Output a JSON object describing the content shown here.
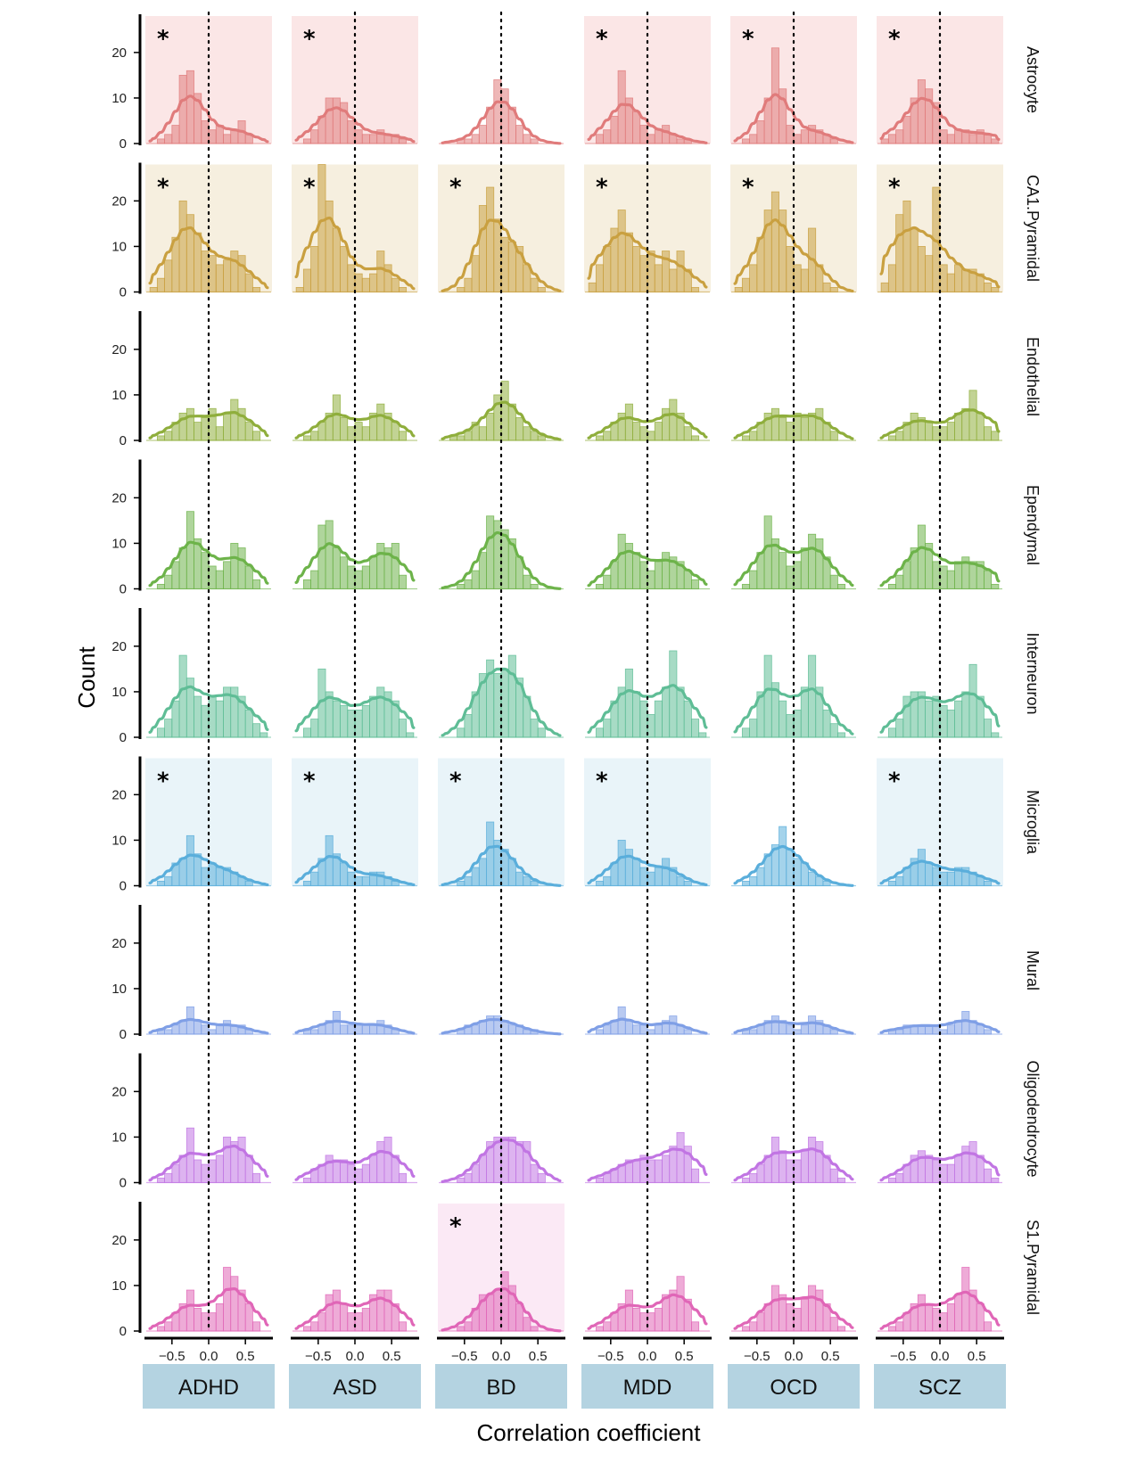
{
  "chart_data": {
    "type": "histogram",
    "xlabel": "Correlation coefficient",
    "ylabel": "Count",
    "xlim": [
      -0.85,
      0.85
    ],
    "ylim": [
      0,
      28
    ],
    "x_ticks": [
      -0.5,
      0.0,
      0.5
    ],
    "x_tick_labels": [
      "−0.5",
      "0.0",
      "0.5"
    ],
    "y_ticks": [
      0,
      10,
      20
    ],
    "y_tick_labels": [
      "0",
      "10",
      "20"
    ],
    "reference_line_x": 0,
    "bin_width": 0.1,
    "bin_centers": [
      -0.75,
      -0.65,
      -0.55,
      -0.45,
      -0.35,
      -0.25,
      -0.15,
      -0.05,
      0.05,
      0.15,
      0.25,
      0.35,
      0.45,
      0.55,
      0.65,
      0.75
    ],
    "columns": [
      "ADHD",
      "ASD",
      "BD",
      "MDD",
      "OCD",
      "SCZ"
    ],
    "significance_symbol": "*",
    "rows": [
      {
        "name": "Astrocyte",
        "color": "#e07b7b",
        "shade": "#fbe6e6",
        "significant": [
          true,
          true,
          false,
          true,
          true,
          true
        ],
        "counts": [
          [
            0,
            1,
            2,
            4,
            15,
            16,
            11,
            5,
            3,
            4,
            2,
            3,
            5,
            2,
            0,
            0
          ],
          [
            0,
            1,
            3,
            6,
            10,
            10,
            9,
            5,
            3,
            2,
            2,
            3,
            2,
            2,
            1,
            0
          ],
          [
            0,
            0,
            1,
            1,
            2,
            4,
            8,
            14,
            12,
            8,
            4,
            2,
            1,
            0,
            0,
            0
          ],
          [
            0,
            2,
            3,
            6,
            16,
            10,
            7,
            4,
            2,
            3,
            4,
            2,
            1,
            1,
            0,
            0
          ],
          [
            0,
            1,
            2,
            5,
            10,
            21,
            12,
            4,
            2,
            3,
            4,
            3,
            2,
            1,
            0,
            0
          ],
          [
            1,
            2,
            3,
            6,
            10,
            14,
            12,
            9,
            3,
            2,
            3,
            3,
            2,
            3,
            2,
            1
          ]
        ]
      },
      {
        "name": "CA1.Pyramidal",
        "color": "#c9a040",
        "shade": "#f6efdf",
        "significant": [
          true,
          true,
          true,
          true,
          true,
          true
        ],
        "counts": [
          [
            1,
            3,
            7,
            12,
            20,
            17,
            13,
            9,
            8,
            6,
            7,
            9,
            8,
            4,
            1,
            0
          ],
          [
            1,
            5,
            10,
            28,
            20,
            14,
            10,
            6,
            4,
            3,
            4,
            9,
            6,
            3,
            1,
            0
          ],
          [
            0,
            0,
            1,
            3,
            8,
            19,
            23,
            16,
            12,
            11,
            10,
            6,
            3,
            1,
            0,
            0
          ],
          [
            2,
            6,
            10,
            14,
            18,
            13,
            10,
            8,
            9,
            6,
            9,
            5,
            9,
            5,
            1,
            0
          ],
          [
            1,
            3,
            6,
            12,
            18,
            22,
            18,
            10,
            6,
            5,
            14,
            6,
            2,
            1,
            0,
            0
          ],
          [
            2,
            6,
            17,
            20,
            14,
            10,
            8,
            23,
            6,
            4,
            6,
            5,
            5,
            4,
            2,
            1
          ]
        ]
      },
      {
        "name": "Endothelial",
        "color": "#8fae3c",
        "shade": "#f4f7e6",
        "significant": [
          false,
          false,
          false,
          false,
          false,
          false
        ],
        "counts": [
          [
            0,
            1,
            2,
            4,
            6,
            7,
            4,
            5,
            7,
            3,
            6,
            9,
            7,
            4,
            2,
            0
          ],
          [
            0,
            1,
            2,
            4,
            6,
            10,
            5,
            3,
            4,
            3,
            6,
            8,
            6,
            4,
            2,
            0
          ],
          [
            0,
            1,
            1,
            2,
            4,
            3,
            6,
            10,
            13,
            8,
            5,
            3,
            2,
            1,
            0,
            0
          ],
          [
            0,
            1,
            2,
            4,
            6,
            8,
            4,
            3,
            2,
            4,
            7,
            9,
            6,
            3,
            1,
            0
          ],
          [
            0,
            1,
            2,
            4,
            6,
            7,
            5,
            4,
            6,
            5,
            6,
            7,
            4,
            2,
            0,
            0
          ],
          [
            0,
            1,
            2,
            4,
            6,
            5,
            4,
            3,
            3,
            4,
            6,
            7,
            11,
            6,
            3,
            2
          ]
        ]
      },
      {
        "name": "Ependymal",
        "color": "#6db34a",
        "shade": "#eef6e8",
        "significant": [
          false,
          false,
          false,
          false,
          false,
          false
        ],
        "counts": [
          [
            0,
            1,
            3,
            6,
            9,
            17,
            11,
            8,
            5,
            4,
            6,
            10,
            9,
            5,
            2,
            0
          ],
          [
            0,
            2,
            4,
            14,
            15,
            9,
            7,
            5,
            4,
            5,
            7,
            10,
            9,
            10,
            3,
            0
          ],
          [
            0,
            0,
            1,
            2,
            4,
            8,
            16,
            15,
            13,
            11,
            7,
            3,
            1,
            0,
            0,
            0
          ],
          [
            0,
            1,
            3,
            6,
            12,
            10,
            8,
            6,
            4,
            6,
            8,
            7,
            6,
            4,
            2,
            0
          ],
          [
            0,
            1,
            4,
            8,
            16,
            11,
            8,
            5,
            6,
            9,
            12,
            11,
            7,
            3,
            1,
            0
          ],
          [
            0,
            1,
            3,
            6,
            9,
            14,
            10,
            6,
            5,
            4,
            6,
            7,
            6,
            6,
            4,
            1
          ]
        ]
      },
      {
        "name": "Interneuron",
        "color": "#5fbd96",
        "shade": "#e8f6ef",
        "significant": [
          false,
          false,
          false,
          false,
          false,
          false
        ],
        "counts": [
          [
            0,
            2,
            4,
            8,
            18,
            13,
            9,
            7,
            9,
            8,
            11,
            11,
            9,
            6,
            3,
            1
          ],
          [
            0,
            2,
            4,
            15,
            10,
            8,
            7,
            6,
            6,
            7,
            9,
            11,
            10,
            8,
            4,
            1
          ],
          [
            0,
            0,
            2,
            5,
            10,
            14,
            17,
            14,
            15,
            18,
            13,
            9,
            4,
            2,
            0,
            0
          ],
          [
            0,
            2,
            4,
            8,
            11,
            15,
            10,
            8,
            5,
            8,
            11,
            19,
            11,
            8,
            4,
            1
          ],
          [
            0,
            2,
            4,
            10,
            18,
            12,
            8,
            5,
            6,
            11,
            18,
            11,
            6,
            3,
            1,
            0
          ],
          [
            0,
            2,
            4,
            9,
            10,
            10,
            8,
            9,
            7,
            6,
            8,
            10,
            16,
            9,
            4,
            1
          ]
        ]
      },
      {
        "name": "Microglia",
        "color": "#5aaedb",
        "shade": "#e9f4f9",
        "significant": [
          true,
          true,
          true,
          true,
          false,
          true
        ],
        "counts": [
          [
            0,
            1,
            2,
            5,
            6,
            11,
            7,
            4,
            5,
            4,
            4,
            3,
            2,
            1,
            0,
            0
          ],
          [
            0,
            1,
            3,
            6,
            11,
            7,
            5,
            3,
            2,
            2,
            3,
            3,
            2,
            1,
            0,
            0
          ],
          [
            0,
            0,
            1,
            2,
            4,
            6,
            14,
            10,
            8,
            6,
            3,
            2,
            1,
            0,
            0,
            0
          ],
          [
            0,
            1,
            2,
            5,
            10,
            8,
            6,
            4,
            3,
            4,
            6,
            4,
            2,
            1,
            0,
            0
          ],
          [
            0,
            1,
            2,
            4,
            7,
            9,
            13,
            8,
            6,
            5,
            3,
            2,
            1,
            0,
            0,
            0
          ],
          [
            0,
            1,
            2,
            4,
            6,
            8,
            5,
            4,
            3,
            3,
            4,
            4,
            3,
            2,
            1,
            0
          ]
        ]
      },
      {
        "name": "Mural",
        "color": "#7f9fe6",
        "shade": "#edf2fc",
        "significant": [
          false,
          false,
          false,
          false,
          false,
          false
        ],
        "counts": [
          [
            0,
            1,
            1,
            2,
            3,
            6,
            3,
            2,
            1,
            2,
            3,
            2,
            2,
            1,
            0,
            0
          ],
          [
            0,
            1,
            1,
            2,
            3,
            5,
            2,
            2,
            2,
            2,
            2,
            3,
            2,
            1,
            0,
            0
          ],
          [
            0,
            0,
            1,
            2,
            2,
            3,
            4,
            4,
            3,
            2,
            2,
            1,
            1,
            0,
            0,
            0
          ],
          [
            0,
            1,
            2,
            3,
            6,
            3,
            2,
            2,
            1,
            2,
            3,
            4,
            2,
            1,
            0,
            0
          ],
          [
            0,
            1,
            1,
            2,
            3,
            4,
            3,
            2,
            1,
            2,
            4,
            3,
            2,
            1,
            0,
            0
          ],
          [
            0,
            1,
            1,
            2,
            2,
            2,
            2,
            2,
            1,
            2,
            3,
            5,
            3,
            2,
            1,
            0
          ]
        ]
      },
      {
        "name": "Oligodendrocyte",
        "color": "#c175e3",
        "shade": "#f6ecfb",
        "significant": [
          false,
          false,
          false,
          false,
          false,
          false
        ],
        "counts": [
          [
            0,
            1,
            2,
            4,
            6,
            12,
            5,
            4,
            5,
            6,
            10,
            9,
            10,
            6,
            2,
            0
          ],
          [
            0,
            1,
            3,
            4,
            6,
            5,
            5,
            4,
            3,
            4,
            6,
            9,
            10,
            6,
            2,
            0
          ],
          [
            0,
            0,
            1,
            2,
            4,
            6,
            9,
            10,
            10,
            10,
            9,
            9,
            4,
            2,
            0,
            0
          ],
          [
            0,
            1,
            2,
            3,
            4,
            5,
            5,
            6,
            5,
            5,
            6,
            8,
            11,
            8,
            3,
            0
          ],
          [
            0,
            1,
            2,
            4,
            6,
            10,
            7,
            5,
            5,
            7,
            10,
            9,
            6,
            3,
            1,
            0
          ],
          [
            0,
            1,
            2,
            4,
            6,
            7,
            6,
            5,
            4,
            4,
            6,
            8,
            9,
            6,
            3,
            1
          ]
        ]
      },
      {
        "name": "S1.Pyramidal",
        "color": "#e066b7",
        "shade": "#fbe9f5",
        "significant": [
          false,
          false,
          true,
          false,
          false,
          false
        ],
        "counts": [
          [
            0,
            1,
            2,
            4,
            6,
            9,
            5,
            4,
            4,
            6,
            14,
            12,
            9,
            6,
            2,
            0
          ],
          [
            0,
            1,
            2,
            4,
            8,
            9,
            6,
            4,
            4,
            5,
            8,
            9,
            9,
            6,
            2,
            0
          ],
          [
            0,
            0,
            1,
            2,
            5,
            8,
            8,
            9,
            13,
            10,
            6,
            3,
            1,
            0,
            0,
            0
          ],
          [
            0,
            1,
            2,
            4,
            6,
            9,
            5,
            4,
            4,
            5,
            8,
            9,
            12,
            7,
            2,
            0
          ],
          [
            0,
            1,
            2,
            4,
            6,
            10,
            8,
            6,
            5,
            7,
            10,
            9,
            6,
            3,
            1,
            0
          ],
          [
            0,
            1,
            2,
            4,
            6,
            8,
            6,
            5,
            4,
            6,
            8,
            14,
            9,
            6,
            2,
            0
          ]
        ]
      }
    ]
  }
}
